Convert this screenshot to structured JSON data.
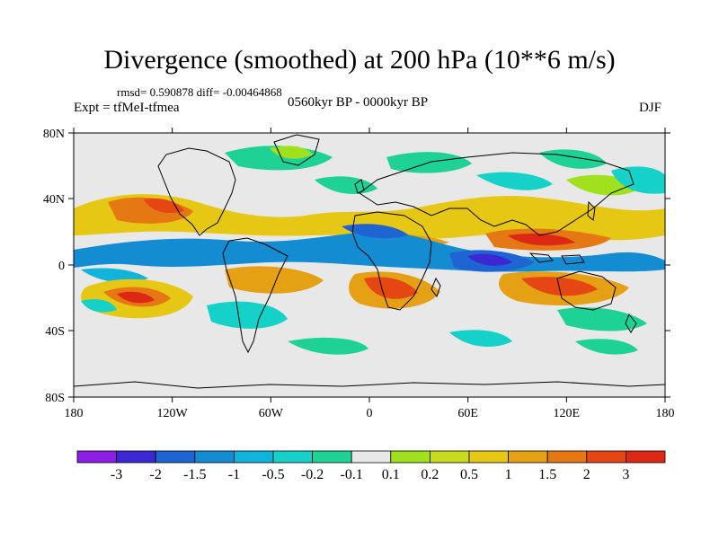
{
  "title": "Divergence (smoothed) at 200 hPa (10**6 m/s)",
  "stats": "rmsd= 0.590878 diff= -0.00464868",
  "experiment": "Expt = tfMeI-tfmea",
  "period": "0560kyr BP - 0000kyr BP",
  "season": "DJF",
  "map": {
    "background_color": "#e8e8e8",
    "lat_ticks": [
      "80N",
      "40N",
      "0",
      "40S",
      "80S"
    ],
    "lon_ticks": [
      "180",
      "120W",
      "60W",
      "0",
      "60E",
      "120E",
      "180"
    ]
  },
  "colorbar": {
    "colors": [
      "#8c1ee6",
      "#3c28d2",
      "#1e64d2",
      "#148cd2",
      "#0fb4dc",
      "#14d2c8",
      "#1ed296",
      "#e8e8e8",
      "#a0e11e",
      "#c8dc1e",
      "#e6c814",
      "#e6a014",
      "#e67814",
      "#e64614",
      "#dc2814"
    ],
    "labels": [
      "-3",
      "-2",
      "-1.5",
      "-1",
      "-0.5",
      "-0.2",
      "-0.1",
      "0.1",
      "0.2",
      "0.5",
      "1",
      "1.5",
      "2",
      "3"
    ]
  }
}
